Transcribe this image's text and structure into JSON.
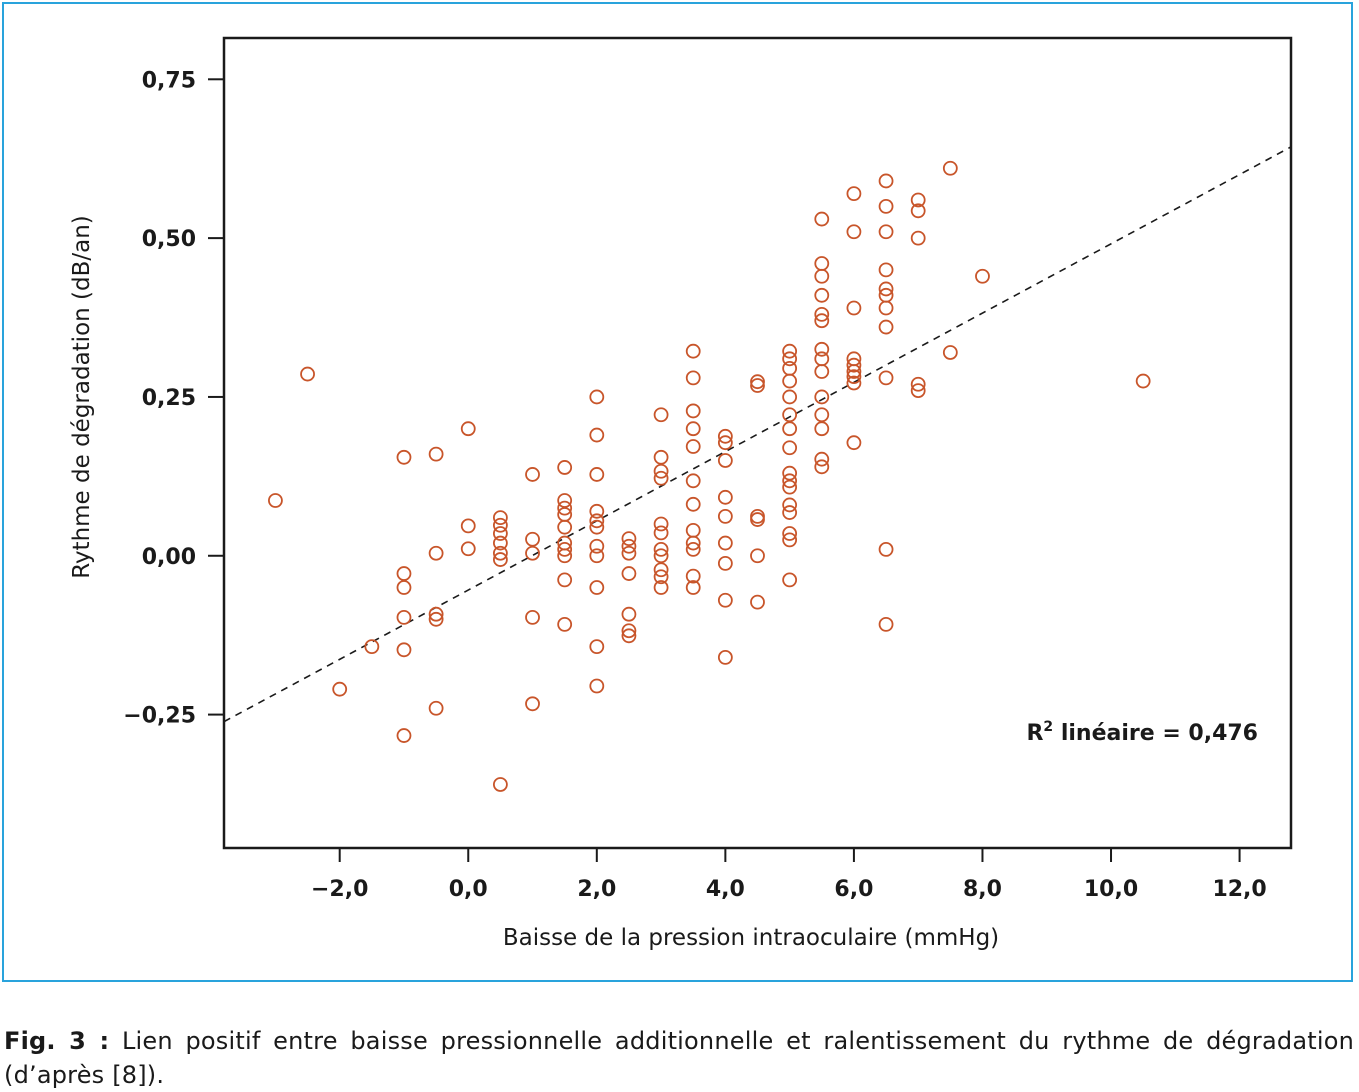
{
  "figure": {
    "frame_color": "#29a3dc",
    "point_color": "#c8552a",
    "trend_color": "#1a1a1a",
    "caption_label": "Fig. 3 :",
    "caption_text": " Lien positif entre baisse pressionnelle additionnelle et ralentissement du rythme de dégradation (d’après [8])."
  },
  "chart_data": {
    "type": "scatter",
    "xlabel": "Baisse de la pression intraoculaire (mmHg)",
    "ylabel": "Rythme de dégradation (dB/an)",
    "xlim": [
      -3.8,
      12.8
    ],
    "ylim": [
      -0.46,
      0.815
    ],
    "x_ticks": [
      -2,
      0,
      2,
      4,
      6,
      8,
      10,
      12
    ],
    "x_tick_labels": [
      "−2,0",
      "0,0",
      "2,0",
      "4,0",
      "6,0",
      "8,0",
      "10,0",
      "12,0"
    ],
    "y_ticks": [
      0.75,
      0.5,
      0.25,
      0,
      -0.25
    ],
    "y_tick_labels": [
      "0,75",
      "0,50",
      "0,25",
      "0,00",
      "−0,25"
    ],
    "grid": false,
    "annotation": {
      "text_main": "R",
      "sup": "2",
      "text_rest": " linéaire = 0,476"
    },
    "trendline": {
      "slope": 0.0545,
      "intercept": -0.054
    },
    "points": [
      [
        -3.0,
        0.087
      ],
      [
        -2.5,
        0.286
      ],
      [
        -2.0,
        -0.21
      ],
      [
        -1.5,
        -0.143
      ],
      [
        -1.0,
        0.155
      ],
      [
        -1.0,
        -0.028
      ],
      [
        -1.0,
        -0.05
      ],
      [
        -1.0,
        -0.097
      ],
      [
        -1.0,
        -0.148
      ],
      [
        -1.0,
        -0.283
      ],
      [
        -0.5,
        0.16
      ],
      [
        -0.5,
        0.004
      ],
      [
        -0.5,
        -0.092
      ],
      [
        -0.5,
        -0.1
      ],
      [
        -0.5,
        -0.24
      ],
      [
        0.0,
        0.2
      ],
      [
        0.0,
        0.047
      ],
      [
        0.0,
        0.011
      ],
      [
        0.5,
        0.06
      ],
      [
        0.5,
        0.048
      ],
      [
        0.5,
        0.035
      ],
      [
        0.5,
        0.02
      ],
      [
        0.5,
        0.004
      ],
      [
        0.5,
        -0.006
      ],
      [
        0.5,
        -0.36
      ],
      [
        1.0,
        0.128
      ],
      [
        1.0,
        0.026
      ],
      [
        1.0,
        0.004
      ],
      [
        1.0,
        -0.097
      ],
      [
        1.0,
        -0.233
      ],
      [
        1.5,
        0.139
      ],
      [
        1.5,
        0.087
      ],
      [
        1.5,
        0.075
      ],
      [
        1.5,
        0.065
      ],
      [
        1.5,
        0.045
      ],
      [
        1.5,
        0.02
      ],
      [
        1.5,
        0.01
      ],
      [
        1.5,
        0.0
      ],
      [
        1.5,
        -0.038
      ],
      [
        1.5,
        -0.108
      ],
      [
        2.0,
        0.25
      ],
      [
        2.0,
        0.19
      ],
      [
        2.0,
        0.128
      ],
      [
        2.0,
        0.07
      ],
      [
        2.0,
        0.055
      ],
      [
        2.0,
        0.045
      ],
      [
        2.0,
        0.015
      ],
      [
        2.0,
        0.0
      ],
      [
        2.0,
        -0.05
      ],
      [
        2.0,
        -0.143
      ],
      [
        2.0,
        -0.205
      ],
      [
        2.5,
        0.027
      ],
      [
        2.5,
        0.015
      ],
      [
        2.5,
        0.004
      ],
      [
        2.5,
        -0.028
      ],
      [
        2.5,
        -0.092
      ],
      [
        2.5,
        -0.118
      ],
      [
        2.5,
        -0.126
      ],
      [
        3.0,
        0.222
      ],
      [
        3.0,
        0.155
      ],
      [
        3.0,
        0.133
      ],
      [
        3.0,
        0.122
      ],
      [
        3.0,
        0.05
      ],
      [
        3.0,
        0.036
      ],
      [
        3.0,
        0.01
      ],
      [
        3.0,
        0.0
      ],
      [
        3.0,
        -0.022
      ],
      [
        3.0,
        -0.033
      ],
      [
        3.0,
        -0.05
      ],
      [
        3.5,
        0.322
      ],
      [
        3.5,
        0.28
      ],
      [
        3.5,
        0.228
      ],
      [
        3.5,
        0.2
      ],
      [
        3.5,
        0.172
      ],
      [
        3.5,
        0.118
      ],
      [
        3.5,
        0.081
      ],
      [
        3.5,
        0.04
      ],
      [
        3.5,
        0.02
      ],
      [
        3.5,
        0.01
      ],
      [
        3.5,
        -0.032
      ],
      [
        3.5,
        -0.05
      ],
      [
        4.0,
        0.188
      ],
      [
        4.0,
        0.178
      ],
      [
        4.0,
        0.15
      ],
      [
        4.0,
        0.092
      ],
      [
        4.0,
        0.062
      ],
      [
        4.0,
        0.02
      ],
      [
        4.0,
        -0.012
      ],
      [
        4.0,
        -0.07
      ],
      [
        4.0,
        -0.16
      ],
      [
        4.5,
        0.274
      ],
      [
        4.5,
        0.268
      ],
      [
        4.5,
        0.062
      ],
      [
        4.5,
        0.057
      ],
      [
        4.5,
        0.0
      ],
      [
        4.5,
        -0.073
      ],
      [
        5.0,
        0.322
      ],
      [
        5.0,
        0.31
      ],
      [
        5.0,
        0.295
      ],
      [
        5.0,
        0.275
      ],
      [
        5.0,
        0.25
      ],
      [
        5.0,
        0.222
      ],
      [
        5.0,
        0.2
      ],
      [
        5.0,
        0.17
      ],
      [
        5.0,
        0.13
      ],
      [
        5.0,
        0.118
      ],
      [
        5.0,
        0.108
      ],
      [
        5.0,
        0.08
      ],
      [
        5.0,
        0.068
      ],
      [
        5.0,
        0.035
      ],
      [
        5.0,
        0.025
      ],
      [
        5.0,
        -0.038
      ],
      [
        5.5,
        0.53
      ],
      [
        5.5,
        0.46
      ],
      [
        5.5,
        0.44
      ],
      [
        5.5,
        0.41
      ],
      [
        5.5,
        0.38
      ],
      [
        5.5,
        0.37
      ],
      [
        5.5,
        0.325
      ],
      [
        5.5,
        0.31
      ],
      [
        5.5,
        0.29
      ],
      [
        5.5,
        0.25
      ],
      [
        5.5,
        0.222
      ],
      [
        5.5,
        0.2
      ],
      [
        5.5,
        0.152
      ],
      [
        5.5,
        0.14
      ],
      [
        6.0,
        0.57
      ],
      [
        6.0,
        0.51
      ],
      [
        6.0,
        0.39
      ],
      [
        6.0,
        0.31
      ],
      [
        6.0,
        0.3
      ],
      [
        6.0,
        0.29
      ],
      [
        6.0,
        0.282
      ],
      [
        6.0,
        0.272
      ],
      [
        6.0,
        0.178
      ],
      [
        6.5,
        0.59
      ],
      [
        6.5,
        0.55
      ],
      [
        6.5,
        0.51
      ],
      [
        6.5,
        0.45
      ],
      [
        6.5,
        0.42
      ],
      [
        6.5,
        0.41
      ],
      [
        6.5,
        0.39
      ],
      [
        6.5,
        0.36
      ],
      [
        6.5,
        0.28
      ],
      [
        6.5,
        0.01
      ],
      [
        6.5,
        -0.108
      ],
      [
        7.0,
        0.56
      ],
      [
        7.0,
        0.543
      ],
      [
        7.0,
        0.5
      ],
      [
        7.0,
        0.27
      ],
      [
        7.0,
        0.26
      ],
      [
        7.5,
        0.61
      ],
      [
        7.5,
        0.32
      ],
      [
        8.0,
        0.44
      ],
      [
        10.5,
        0.275
      ]
    ]
  }
}
